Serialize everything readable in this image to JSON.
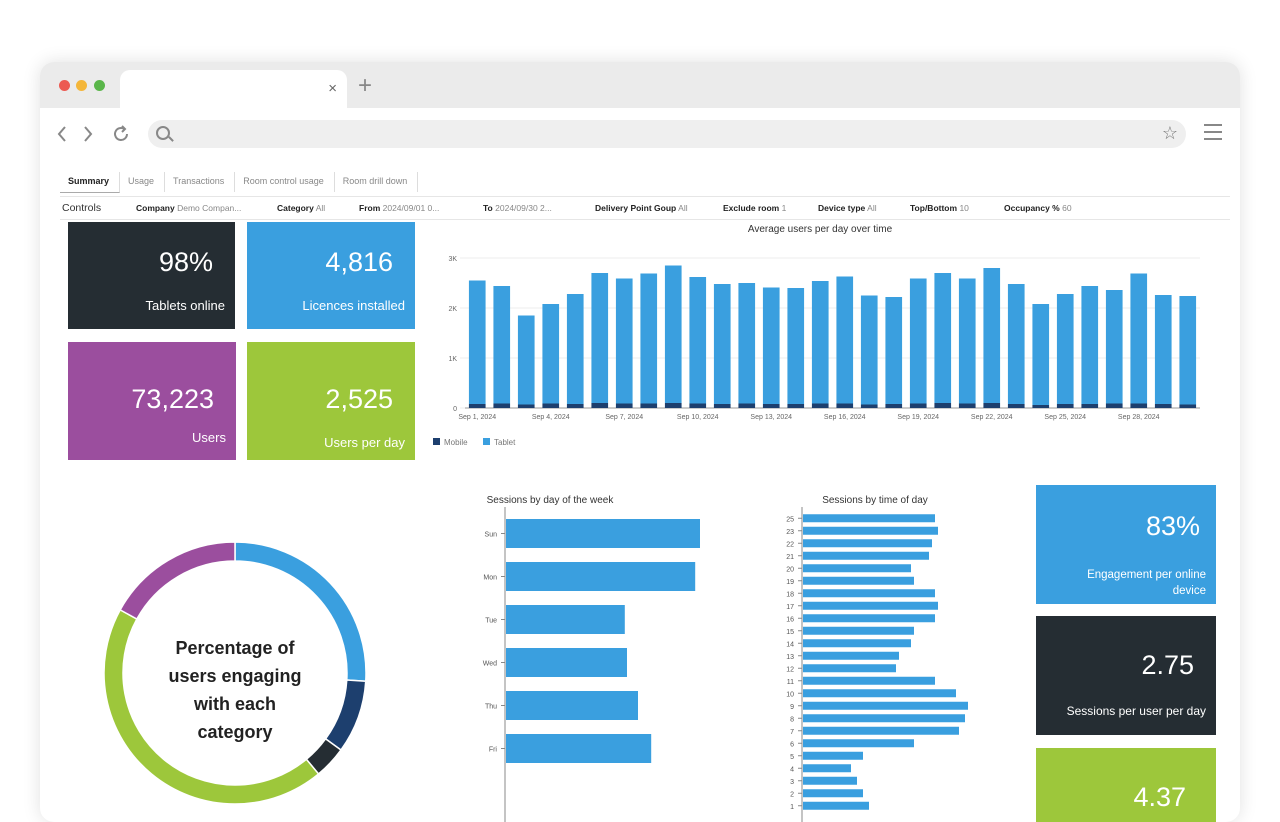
{
  "browser": {
    "tab_close": "×",
    "new_tab": "+",
    "colors": {
      "red": "#ec5a52",
      "yellow": "#f4b63a",
      "green": "#5ab64a"
    }
  },
  "report_tabs": [
    "Summary",
    "Usage",
    "Transactions",
    "Room control usage",
    "Room drill down"
  ],
  "controls": {
    "label": "Controls",
    "filters": [
      {
        "name": "Company",
        "value": "Demo Compan..."
      },
      {
        "name": "Category",
        "value": "All"
      },
      {
        "name": "From",
        "value": "2024/09/01 0..."
      },
      {
        "name": "To",
        "value": "2024/09/30 2..."
      },
      {
        "name": "Delivery Point Goup",
        "value": "All"
      },
      {
        "name": "Exclude room",
        "value": "1"
      },
      {
        "name": "Device type",
        "value": "All"
      },
      {
        "name": "Top/Bottom",
        "value": "10"
      },
      {
        "name": "Occupancy %",
        "value": "60"
      }
    ]
  },
  "kpis": {
    "tablets_online": {
      "value": "98%",
      "label": "Tablets online",
      "color": "#252d33"
    },
    "licences_installed": {
      "value": "4,816",
      "label": "Licences installed",
      "color": "#3a9fdf"
    },
    "users": {
      "value": "73,223",
      "label": "Users",
      "color": "#9b4e9e"
    },
    "users_per_day": {
      "value": "2,525",
      "label": "Users per day",
      "color": "#9dc73b"
    },
    "engagement": {
      "value": "83%",
      "label_line1": "Engagement per online",
      "label_line2": "device",
      "color": "#3a9fdf"
    },
    "sessions_per_user": {
      "value": "2.75",
      "label": "Sessions per user per day",
      "color": "#252d33"
    },
    "third": {
      "value": "4.37",
      "color": "#9dc73b"
    }
  },
  "donut": {
    "center_lines": [
      "Percentage of",
      "users engaging",
      "with each",
      "category"
    ]
  },
  "chart_data": [
    {
      "type": "bar",
      "title": "Average users per day over time",
      "stacked": true,
      "categories": [
        "Sep 1, 2024",
        "Sep 2",
        "Sep 3",
        "Sep 4, 2024",
        "Sep 5",
        "Sep 6",
        "Sep 7, 2024",
        "Sep 8",
        "Sep 9",
        "Sep 10, 2024",
        "Sep 11",
        "Sep 12",
        "Sep 13, 2024",
        "Sep 14",
        "Sep 15",
        "Sep 16, 2024",
        "Sep 17",
        "Sep 18",
        "Sep 19, 2024",
        "Sep 20",
        "Sep 21",
        "Sep 22, 2024",
        "Sep 23",
        "Sep 24",
        "Sep 25, 2024",
        "Sep 26",
        "Sep 27",
        "Sep 28, 2024",
        "Sep 29",
        "Sep 30"
      ],
      "tick_labels": [
        "Sep 1, 2024",
        "Sep 4, 2024",
        "Sep 7, 2024",
        "Sep 10, 2024",
        "Sep 13, 2024",
        "Sep 16, 2024",
        "Sep 19, 2024",
        "Sep 22, 2024",
        "Sep 25, 2024",
        "Sep 28, 2024"
      ],
      "series": [
        {
          "name": "Mobile",
          "color": "#1d3f6e",
          "values": [
            80,
            90,
            70,
            90,
            80,
            100,
            90,
            90,
            100,
            90,
            80,
            90,
            80,
            80,
            90,
            90,
            70,
            80,
            90,
            100,
            90,
            100,
            80,
            60,
            80,
            80,
            90,
            90,
            80,
            70
          ]
        },
        {
          "name": "Tablet",
          "color": "#3a9fdf",
          "values": [
            2470,
            2350,
            1780,
            1990,
            2200,
            2600,
            2500,
            2600,
            2750,
            2530,
            2400,
            2410,
            2330,
            2320,
            2450,
            2540,
            2180,
            2140,
            2500,
            2600,
            2500,
            2700,
            2400,
            2020,
            2200,
            2360,
            2270,
            2600,
            2180,
            2170
          ]
        }
      ],
      "ylim": [
        0,
        3000
      ],
      "yticks": [
        {
          "v": 0,
          "label": "0"
        },
        {
          "v": 1000,
          "label": "1K"
        },
        {
          "v": 2000,
          "label": "2K"
        },
        {
          "v": 3000,
          "label": "3K"
        }
      ],
      "legend": "bottom-left"
    },
    {
      "type": "bar",
      "orientation": "horizontal",
      "title": "Sessions by day of the week",
      "categories": [
        "Sun",
        "Mon",
        "Tue",
        "Wed",
        "Thu",
        "Fri"
      ],
      "values": [
        4700,
        4300,
        2700,
        2750,
        3000,
        3300
      ],
      "xlim": [
        0,
        5000
      ],
      "color": "#3a9fdf"
    },
    {
      "type": "bar",
      "orientation": "horizontal",
      "title": "Sessions by time of day",
      "categories": [
        "25",
        "23",
        "22",
        "21",
        "20",
        "19",
        "18",
        "17",
        "16",
        "15",
        "14",
        "13",
        "12",
        "11",
        "10",
        "9",
        "8",
        "7",
        "6",
        "5",
        "4",
        "3",
        "2",
        "1"
      ],
      "values": [
        2200,
        2250,
        2150,
        2100,
        1800,
        1850,
        2200,
        2250,
        2200,
        1850,
        1800,
        1600,
        1550,
        2200,
        2550,
        2750,
        2700,
        2600,
        1850,
        1000,
        800,
        900,
        1000,
        1100
      ],
      "xlim": [
        0,
        3000
      ],
      "color": "#3a9fdf"
    },
    {
      "type": "pie",
      "title": "Percentage of users engaging with each category",
      "donut": true,
      "slices": [
        {
          "value": 26,
          "color": "#3a9fdf"
        },
        {
          "value": 9,
          "color": "#1d3f6e"
        },
        {
          "value": 4,
          "color": "#252d33"
        },
        {
          "value": 44,
          "color": "#9dc73b"
        },
        {
          "value": 17,
          "color": "#9b4e9e"
        }
      ]
    }
  ]
}
